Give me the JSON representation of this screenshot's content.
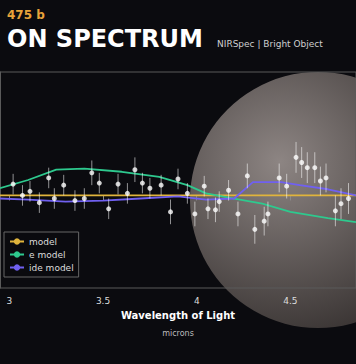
{
  "chart_data": {
    "type": "scatter",
    "subtitle": "475 b",
    "title": "ON SPECTRUM",
    "annotation": "NIRSpec | Bright Object",
    "x_label": "Wavelength of Light",
    "x_sublabel": "microns",
    "xlim": [
      2.95,
      4.85
    ],
    "xticks": [
      3,
      3.5,
      4,
      4.5
    ],
    "ylim": [
      -9,
      12
    ],
    "grid": false,
    "tick_labels": "x",
    "legend": "lower left",
    "series": [
      {
        "type": "scatter",
        "color": "#ffffff",
        "marker": "circle",
        "x": [
          3.02,
          3.07,
          3.11,
          3.16,
          3.21,
          3.24,
          3.29,
          3.35,
          3.4,
          3.44,
          3.48,
          3.53,
          3.58,
          3.63,
          3.67,
          3.71,
          3.75,
          3.81,
          3.86,
          3.9,
          3.95,
          3.99,
          4.04,
          4.06,
          4.1,
          4.12,
          4.17,
          4.22,
          4.27,
          4.31,
          4.36,
          4.38,
          4.44,
          4.48,
          4.53,
          4.56,
          4.59,
          4.63,
          4.66,
          4.69,
          4.74,
          4.77,
          4.81
        ],
        "values": [
          1.1,
          0,
          0.4,
          -0.7,
          1.7,
          -0.3,
          1.0,
          -0.5,
          -0.3,
          2.2,
          1.2,
          -1.3,
          1.1,
          0.2,
          2.5,
          1.2,
          0.7,
          1.0,
          -1.6,
          1.6,
          0.2,
          -1.8,
          0.9,
          -1.3,
          -1.4,
          -0.6,
          0.5,
          -1.8,
          1.9,
          -3.3,
          -2.5,
          -1.8,
          1.7,
          0.9,
          3.7,
          3.2,
          2.7,
          2.7,
          1.4,
          1.7,
          -1.5,
          -0.8,
          -0.3
        ],
        "errors": [
          1.0,
          1.0,
          1.0,
          1.0,
          1.0,
          1.0,
          1.0,
          1.0,
          1.0,
          1.2,
          1.0,
          1.0,
          1.0,
          1.0,
          1.2,
          1.0,
          1.0,
          1.0,
          1.2,
          1.0,
          1.0,
          1.2,
          1.0,
          1.0,
          1.2,
          1.0,
          1.0,
          1.2,
          1.2,
          1.4,
          1.4,
          1.2,
          1.4,
          1.2,
          1.5,
          1.5,
          1.5,
          1.5,
          1.4,
          1.4,
          1.5,
          1.5,
          1.5
        ]
      },
      {
        "type": "line",
        "name": "model",
        "color": "#e0b43c",
        "line_style": "solid",
        "x": [
          2.95,
          4.85
        ],
        "values": [
          0,
          0
        ]
      },
      {
        "type": "line",
        "name": "e model",
        "color": "#2ec98e",
        "line_style": "solid",
        "x": [
          2.95,
          3.1,
          3.25,
          3.4,
          3.6,
          3.8,
          3.95,
          4.05,
          4.2,
          4.35,
          4.5,
          4.7,
          4.85
        ],
        "values": [
          0.7,
          1.5,
          2.5,
          2.6,
          2.3,
          1.8,
          1.0,
          0.2,
          -0.3,
          -0.8,
          -1.6,
          -2.2,
          -2.6
        ]
      },
      {
        "type": "line",
        "name": "ide model",
        "color": "#7060f0",
        "line_style": "solid",
        "x": [
          2.95,
          3.1,
          3.3,
          3.5,
          3.7,
          3.9,
          4.05,
          4.2,
          4.3,
          4.45,
          4.55,
          4.7,
          4.85
        ],
        "values": [
          -0.3,
          -0.4,
          -0.6,
          -0.5,
          -0.3,
          -0.1,
          -0.4,
          -0.3,
          1.3,
          1.3,
          1.0,
          0.6,
          0.0
        ]
      }
    ]
  }
}
